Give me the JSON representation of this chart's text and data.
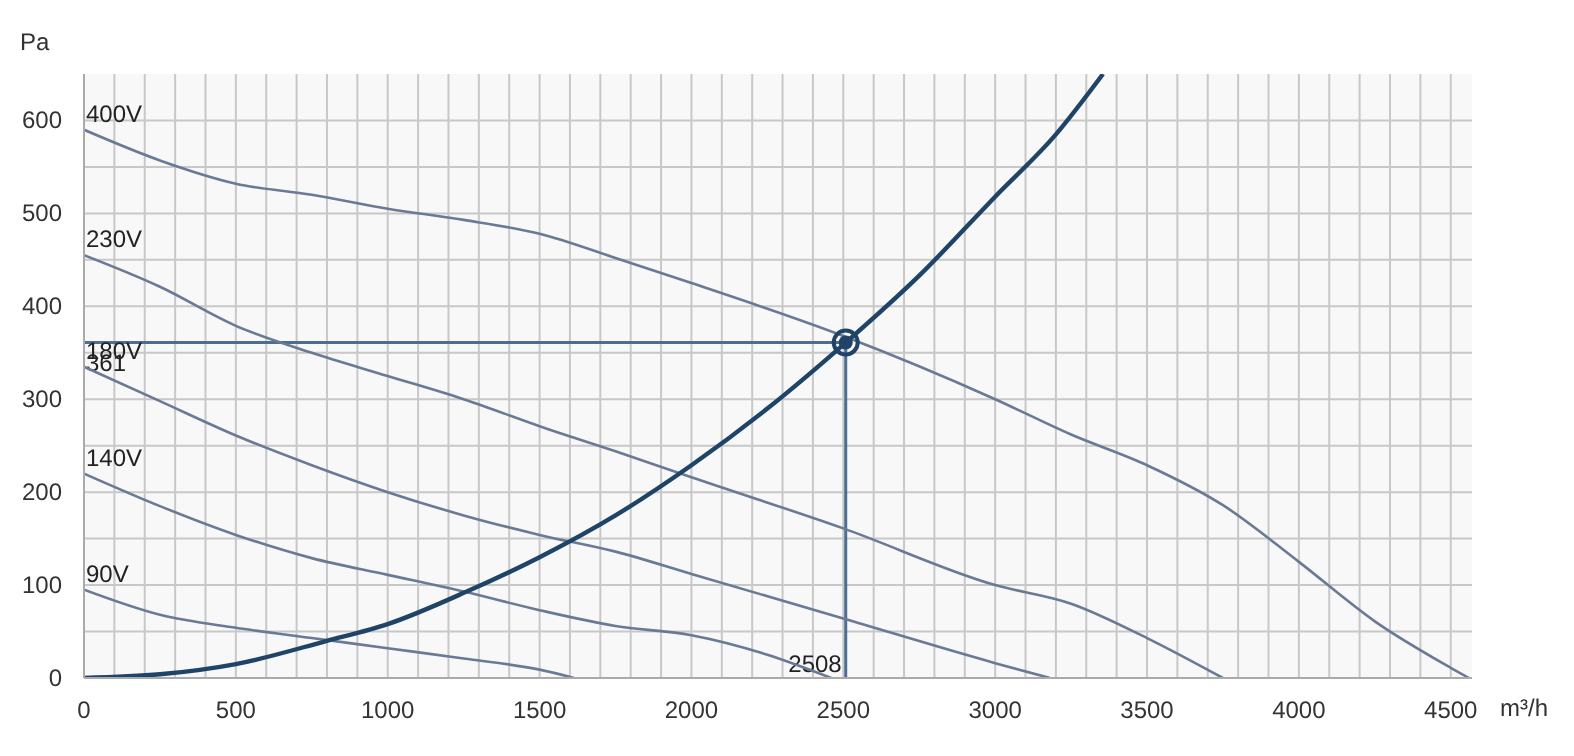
{
  "chart_data": {
    "type": "line",
    "xlabel": "m³/h",
    "ylabel": "Pa",
    "xlim": [
      0,
      4570
    ],
    "ylim": [
      0,
      650
    ],
    "xticks": [
      0,
      {
        "value": 100,
        "label": null
      },
      {
        "value": 200,
        "label": null
      },
      {
        "value": 300,
        "label": null
      },
      {
        "value": 400,
        "label": null
      },
      500,
      {
        "value": 600,
        "label": null
      },
      {
        "value": 700,
        "label": null
      },
      {
        "value": 800,
        "label": null
      },
      {
        "value": 900,
        "label": null
      },
      1000,
      {
        "value": 1100,
        "label": null
      },
      {
        "value": 1200,
        "label": null
      },
      {
        "value": 1300,
        "label": null
      },
      {
        "value": 1400,
        "label": null
      },
      1500,
      {
        "value": 1600,
        "label": null
      },
      {
        "value": 1700,
        "label": null
      },
      {
        "value": 1800,
        "label": null
      },
      {
        "value": 1900,
        "label": null
      },
      2000,
      {
        "value": 2100,
        "label": null
      },
      {
        "value": 2200,
        "label": null
      },
      {
        "value": 2300,
        "label": null
      },
      {
        "value": 2400,
        "label": null
      },
      2500,
      {
        "value": 2600,
        "label": null
      },
      {
        "value": 2700,
        "label": null
      },
      {
        "value": 2800,
        "label": null
      },
      {
        "value": 2900,
        "label": null
      },
      3000,
      {
        "value": 3100,
        "label": null
      },
      {
        "value": 3200,
        "label": null
      },
      {
        "value": 3300,
        "label": null
      },
      {
        "value": 3400,
        "label": null
      },
      3500,
      {
        "value": 3600,
        "label": null
      },
      {
        "value": 3700,
        "label": null
      },
      {
        "value": 3800,
        "label": null
      },
      {
        "value": 3900,
        "label": null
      },
      4000,
      {
        "value": 4100,
        "label": null
      },
      {
        "value": 4200,
        "label": null
      },
      {
        "value": 4300,
        "label": null
      },
      {
        "value": 4400,
        "label": null
      },
      4500
    ],
    "yticks": [
      0,
      {
        "value": 50,
        "label": null
      },
      100,
      {
        "value": 150,
        "label": null
      },
      200,
      {
        "value": 250,
        "label": null
      },
      300,
      {
        "value": 350,
        "label": null
      },
      400,
      {
        "value": 450,
        "label": null
      },
      500,
      {
        "value": 550,
        "label": null
      },
      600
    ],
    "grid": true,
    "marker": "none",
    "line_style": "solid",
    "series": [
      {
        "name": "400V",
        "color": "#6a7a94",
        "x": [
          0,
          250,
          500,
          750,
          1000,
          1250,
          1500,
          1750,
          2000,
          2500,
          3000,
          3250,
          3500,
          3750,
          4000,
          4250,
          4500,
          4560
        ],
        "values": [
          590,
          557,
          532,
          520,
          505,
          493,
          478,
          452,
          425,
          368,
          300,
          262,
          229,
          186,
          125,
          61,
          11,
          0
        ]
      },
      {
        "name": "230V",
        "color": "#6a7a94",
        "x": [
          0,
          250,
          500,
          750,
          1000,
          1250,
          1500,
          1750,
          2000,
          2500,
          3000,
          3250,
          3500,
          3750
        ],
        "values": [
          455,
          421,
          379,
          350,
          325,
          300,
          271,
          244,
          216,
          161,
          100,
          80,
          43,
          0
        ]
      },
      {
        "name": "180V",
        "color": "#6a7a94",
        "x": [
          0,
          250,
          500,
          750,
          1000,
          1250,
          1500,
          1750,
          2000,
          2500,
          3000,
          3180
        ],
        "values": [
          335,
          298,
          261,
          229,
          200,
          175,
          154,
          136,
          112,
          64,
          16,
          0
        ]
      },
      {
        "name": "140V",
        "color": "#6a7a94",
        "x": [
          0,
          250,
          500,
          750,
          1000,
          1250,
          1500,
          1750,
          2000,
          2250,
          2460
        ],
        "values": [
          220,
          185,
          154,
          129,
          111,
          93,
          73,
          56,
          46,
          25,
          0
        ]
      },
      {
        "name": "90V",
        "color": "#6a7a94",
        "x": [
          0,
          250,
          500,
          750,
          1000,
          1250,
          1500,
          1614
        ],
        "values": [
          95,
          68,
          54,
          43,
          32,
          21,
          9,
          0
        ]
      },
      {
        "color": "#1f4468",
        "x": [
          0,
          250,
          500,
          800,
          1000,
          1260,
          1500,
          1750,
          2000,
          2250,
          2508,
          2750,
          3000,
          3200,
          3355
        ],
        "values": [
          0,
          4,
          15,
          40,
          58,
          93,
          130,
          175,
          229,
          290,
          361,
          433,
          518,
          585,
          650
        ]
      },
      {
        "type": "scatter",
        "marker": "circle",
        "color": "#1f4468",
        "x": [
          2508
        ],
        "values": [
          361
        ]
      }
    ],
    "ref_lines": [
      {
        "axis": "y",
        "value": 361,
        "label": "361",
        "color": "#4d6d94"
      },
      {
        "axis": "x",
        "value": 2508,
        "label": "2508",
        "color": "#4d6d94"
      }
    ]
  }
}
